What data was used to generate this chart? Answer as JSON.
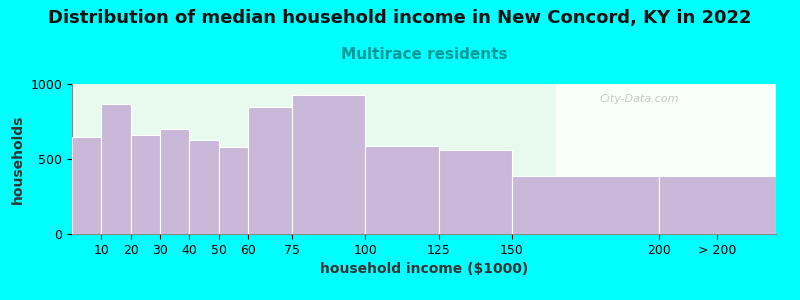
{
  "title": "Distribution of median household income in New Concord, KY in 2022",
  "subtitle": "Multirace residents",
  "xlabel": "household income ($1000)",
  "ylabel": "households",
  "categories": [
    "10",
    "20",
    "30",
    "40",
    "50",
    "60",
    "75",
    "100",
    "125",
    "150",
    "200",
    "> 200"
  ],
  "bin_left_edges": [
    0,
    10,
    20,
    30,
    40,
    50,
    60,
    75,
    100,
    125,
    150,
    200
  ],
  "bin_right_edges": [
    10,
    20,
    30,
    40,
    50,
    60,
    75,
    100,
    125,
    150,
    200,
    240
  ],
  "values": [
    650,
    870,
    660,
    700,
    630,
    580,
    850,
    930,
    590,
    560,
    390,
    390
  ],
  "bar_color": "#c9b8d8",
  "bar_edgecolor": "#ffffff",
  "ylim": [
    0,
    1000
  ],
  "yticks": [
    0,
    500,
    1000
  ],
  "background_color": "#00ffff",
  "title_fontsize": 13,
  "subtitle_fontsize": 11,
  "subtitle_color": "#009999",
  "axis_label_fontsize": 10,
  "tick_fontsize": 9,
  "watermark": "City-Data.com"
}
